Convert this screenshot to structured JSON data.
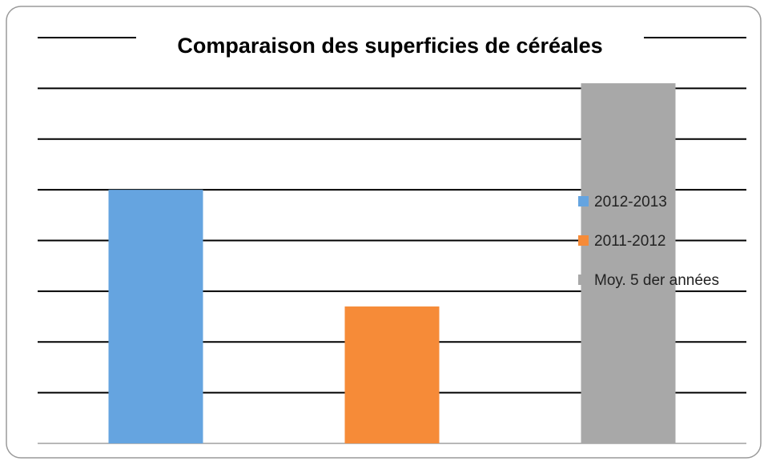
{
  "chart_data": {
    "type": "bar",
    "title": "Comparaison des superficies de céréales",
    "series": [
      {
        "name": "2012-2013",
        "color": "#65a4e0",
        "values": [
          5
        ]
      },
      {
        "name": "2011-2012",
        "color": "#f68b38",
        "values": [
          2.7
        ]
      },
      {
        "name": "Moy. 5 der années",
        "color": "#a8a8a8",
        "values": [
          7.1
        ]
      }
    ],
    "ylim": [
      0,
      8
    ],
    "yticks": [
      0,
      1,
      2,
      3,
      4,
      5,
      6,
      7,
      8
    ],
    "grid": true,
    "legend": "right"
  }
}
